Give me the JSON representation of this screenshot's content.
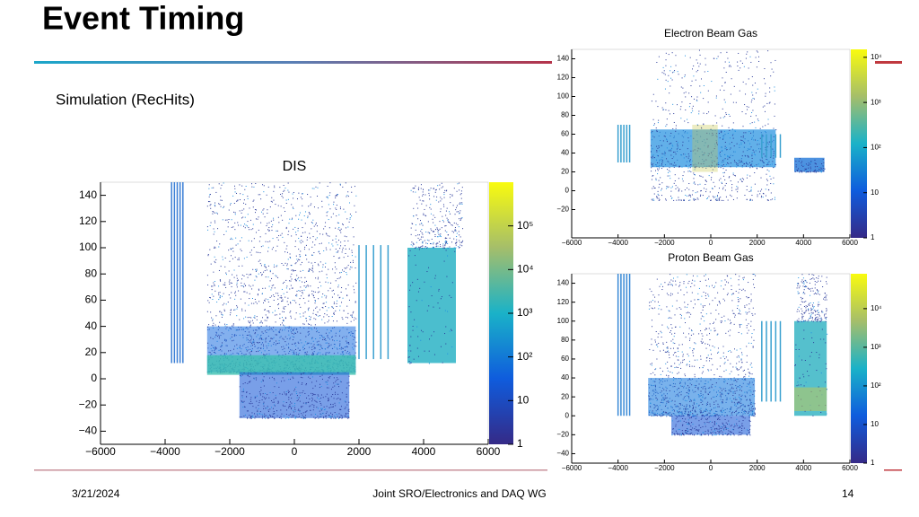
{
  "header": {
    "title": "Event Timing"
  },
  "subtitle": "Simulation (RecHits)",
  "plots": [
    {
      "title": "DIS",
      "xlim": [
        -6000,
        6000
      ],
      "xticks": [
        {
          "value": -6000,
          "label": "−6000"
        },
        {
          "value": -4000,
          "label": "−4000"
        },
        {
          "value": -2000,
          "label": "−2000"
        },
        0,
        2000,
        4000,
        6000
      ],
      "ylim": [
        -50,
        150
      ],
      "yticks": [
        {
          "value": -40,
          "label": "−40"
        },
        {
          "value": -20,
          "label": "−20"
        },
        0,
        20,
        40,
        60,
        80,
        100,
        120,
        140
      ],
      "log_z": true,
      "zlim": [
        1,
        1000000
      ],
      "zticks": [
        1,
        10,
        {
          "value": 100,
          "label": "10²"
        },
        {
          "value": 1000,
          "label": "10³"
        },
        {
          "value": 10000,
          "label": "10⁴"
        },
        {
          "value": 100000,
          "label": "10⁵"
        }
      ]
    },
    {
      "title": "Electron Beam Gas",
      "xlim": [
        -6000,
        6000
      ],
      "xticks": [
        {
          "value": -6000,
          "label": "−6000"
        },
        {
          "value": -4000,
          "label": "−4000"
        },
        {
          "value": -2000,
          "label": "−2000"
        },
        0,
        2000,
        4000,
        6000
      ],
      "ylim": [
        -50,
        150
      ],
      "yticks": [
        {
          "value": -20,
          "label": "−20"
        },
        0,
        20,
        40,
        60,
        80,
        100,
        120,
        140
      ],
      "log_z": true,
      "zlim": [
        1,
        15000
      ],
      "zticks": [
        1,
        10,
        {
          "value": 100,
          "label": "10²"
        },
        {
          "value": 1000,
          "label": "10³"
        },
        {
          "value": 10000,
          "label": "10⁴"
        }
      ]
    },
    {
      "title": "Proton Beam Gas",
      "xlim": [
        -6000,
        6000
      ],
      "xticks": [
        {
          "value": -6000,
          "label": "−6000"
        },
        {
          "value": -4000,
          "label": "−4000"
        },
        {
          "value": -2000,
          "label": "−2000"
        },
        0,
        2000,
        4000,
        6000
      ],
      "ylim": [
        -50,
        150
      ],
      "yticks": [
        {
          "value": -40,
          "label": "−40"
        },
        {
          "value": -20,
          "label": "−20"
        },
        0,
        20,
        40,
        60,
        80,
        100,
        120,
        140
      ],
      "log_z": true,
      "zlim": [
        1,
        80000
      ],
      "zticks": [
        1,
        10,
        {
          "value": 100,
          "label": "10²"
        },
        {
          "value": 1000,
          "label": "10³"
        },
        {
          "value": 10000,
          "label": "10⁴"
        }
      ]
    }
  ],
  "footer": {
    "date": "3/21/2024",
    "center": "Joint SRO/Electronics and DAQ WG",
    "page": "14"
  }
}
